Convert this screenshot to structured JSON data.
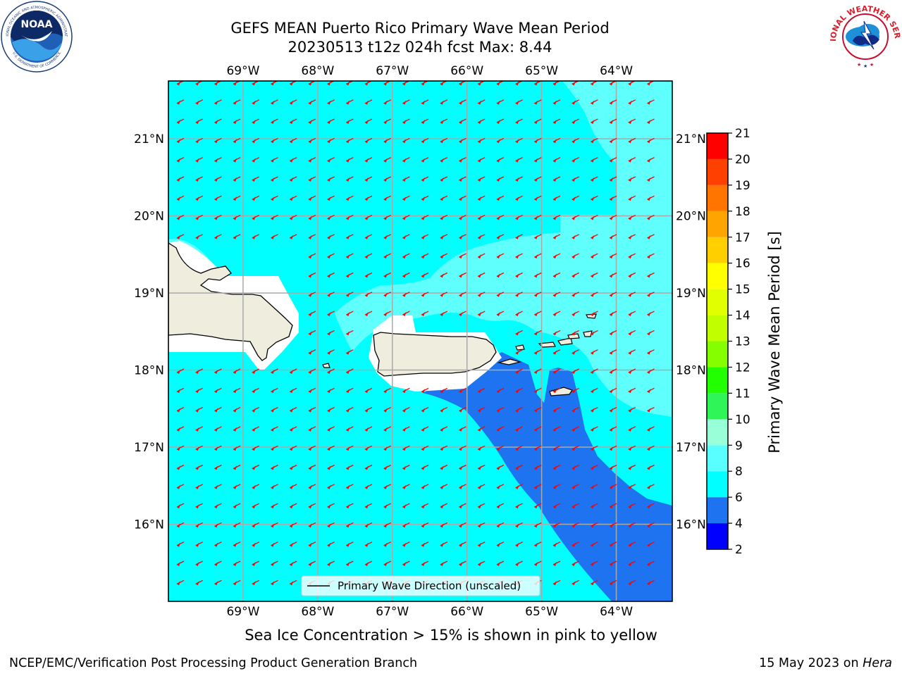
{
  "title": {
    "line1": "GEFS MEAN Puerto Rico Primary Wave Mean Period",
    "line2": "20230513 t12z 024h fcst   Max: 8.44"
  },
  "map": {
    "region": "Puerto Rico",
    "lon_range": [
      -70.0,
      -63.25
    ],
    "lat_range": [
      15.0,
      21.75
    ],
    "lon_ticks": [
      "69°W",
      "68°W",
      "67°W",
      "66°W",
      "65°W",
      "64°W"
    ],
    "lat_ticks": [
      "16°N",
      "17°N",
      "18°N",
      "19°N",
      "20°N",
      "21°N"
    ],
    "gridlines": true,
    "arrow_color": "#ff0000",
    "land_color": "#efedde",
    "legend": {
      "label": "Primary Wave Direction (unscaled)",
      "position": "bottom-center"
    }
  },
  "colorbar": {
    "label": "Primary Wave Mean Period [s]",
    "levels": [
      2,
      4,
      6,
      8,
      9,
      10,
      11,
      12,
      13,
      14,
      15,
      16,
      17,
      18,
      19,
      20,
      21
    ],
    "colors": [
      "#0000ff",
      "#1e74f0",
      "#00ffff",
      "#59fffe",
      "#98ffd8",
      "#30f558",
      "#21ff00",
      "#85ff00",
      "#c1ff00",
      "#e2ff00",
      "#ffff00",
      "#ffcf00",
      "#ffa400",
      "#ff7500",
      "#ff4000",
      "#ff0000"
    ],
    "tick_labels": [
      "2",
      "4",
      "6",
      "8",
      "9",
      "10",
      "11",
      "12",
      "13",
      "14",
      "15",
      "16",
      "17",
      "18",
      "19",
      "20",
      "21"
    ]
  },
  "caption": "Sea Ice Concentration > 15% is shown in pink to yellow",
  "footer": {
    "left": "NCEP/EMC/Verification Post Processing Product Generation Branch",
    "right_date": "15 May 2023 on",
    "right_host": "Hera"
  },
  "logos": {
    "noaa": "NOAA",
    "noaa_ring_top": "NATIONAL OCEANIC AND ATMOSPHERIC ADMINISTRATION",
    "noaa_ring_bottom": "U.S. DEPARTMENT OF COMMERCE",
    "nws_ring": "NATIONAL WEATHER SERVICE"
  }
}
